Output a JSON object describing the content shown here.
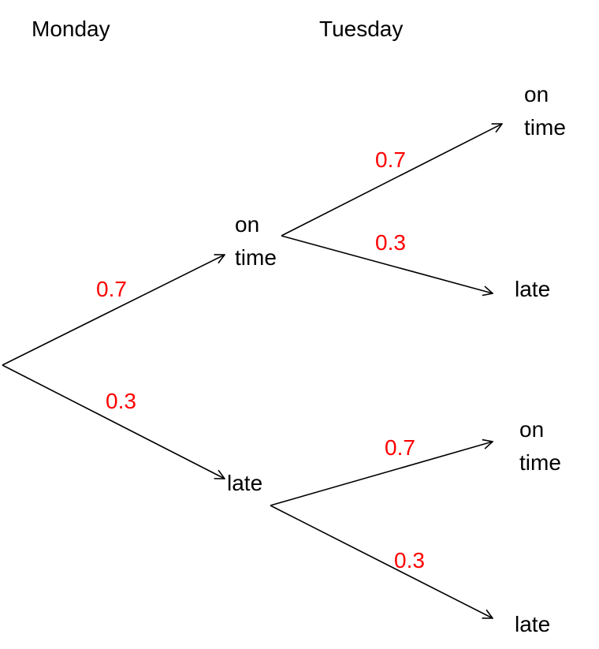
{
  "headers": [
    "Monday",
    "Tuesday"
  ],
  "nodes": [
    {
      "label": "on time"
    },
    {
      "label": "late"
    },
    {
      "label": "on time"
    },
    {
      "label": "late"
    },
    {
      "label": "on time"
    },
    {
      "label": "late"
    }
  ],
  "edges": [
    {
      "probability": 0.7
    },
    {
      "probability": 0.3
    },
    {
      "probability": 0.7
    },
    {
      "probability": 0.3
    },
    {
      "probability": 0.7
    },
    {
      "probability": 0.3
    }
  ]
}
